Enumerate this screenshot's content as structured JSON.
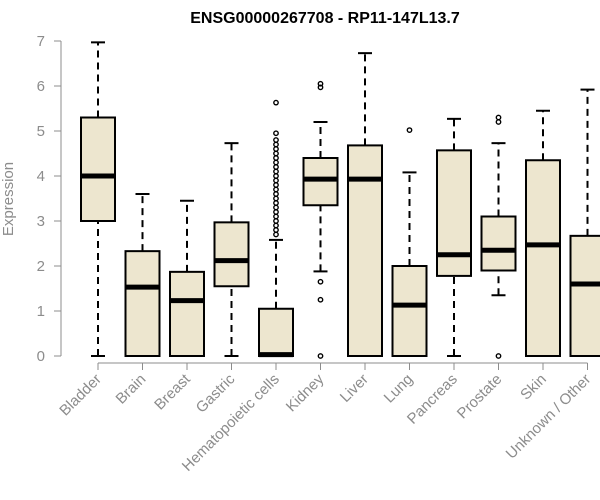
{
  "chart_data": {
    "type": "boxplot",
    "title": "ENSG00000267708 - RP11-147L13.7",
    "ylabel": "Expression",
    "xlabel": "",
    "ylim": [
      0,
      7
    ],
    "yticks": [
      0,
      1,
      2,
      3,
      4,
      5,
      6,
      7
    ],
    "grid": false,
    "colors": {
      "box_fill": "#ede6cf",
      "stroke": "#000000",
      "axis": "#8c8c8c"
    },
    "categories": [
      "Bladder",
      "Brain",
      "Breast",
      "Gastric",
      "Hematopoietic cells",
      "Kidney",
      "Liver",
      "Lung",
      "Pancreas",
      "Prostate",
      "Skin",
      "Unknown / Other"
    ],
    "boxes": [
      {
        "min": 0,
        "q1": 3.0,
        "median": 4.0,
        "q3": 5.3,
        "max": 6.97,
        "outliers": []
      },
      {
        "min": 0,
        "q1": 0,
        "median": 1.53,
        "q3": 2.33,
        "max": 3.6,
        "outliers": []
      },
      {
        "min": 0,
        "q1": 0,
        "median": 1.23,
        "q3": 1.87,
        "max": 3.45,
        "outliers": []
      },
      {
        "min": 0,
        "q1": 1.55,
        "median": 2.12,
        "q3": 2.97,
        "max": 4.73,
        "outliers": []
      },
      {
        "min": 0,
        "q1": 0,
        "median": 0.03,
        "q3": 1.05,
        "max": 2.58,
        "outliers": [
          2.7,
          2.8,
          2.9,
          3.0,
          3.1,
          3.2,
          3.3,
          3.4,
          3.5,
          3.6,
          3.7,
          3.8,
          3.9,
          4.0,
          4.1,
          4.2,
          4.3,
          4.4,
          4.5,
          4.6,
          4.7,
          4.8,
          4.95,
          5.63
        ]
      },
      {
        "min": 1.88,
        "q1": 3.35,
        "median": 3.93,
        "q3": 4.4,
        "max": 5.2,
        "outliers": [
          0,
          1.25,
          1.65,
          5.97,
          6.05
        ]
      },
      {
        "min": 0,
        "q1": 0,
        "median": 3.93,
        "q3": 4.68,
        "max": 6.73,
        "outliers": []
      },
      {
        "min": 0,
        "q1": 0,
        "median": 1.13,
        "q3": 2.0,
        "max": 4.08,
        "outliers": [
          5.02
        ]
      },
      {
        "min": 0,
        "q1": 1.78,
        "median": 2.25,
        "q3": 4.57,
        "max": 5.27,
        "outliers": []
      },
      {
        "min": 1.35,
        "q1": 1.9,
        "median": 2.35,
        "q3": 3.1,
        "max": 4.73,
        "outliers": [
          0,
          5.2,
          5.3
        ]
      },
      {
        "min": 0,
        "q1": 0,
        "median": 2.47,
        "q3": 4.35,
        "max": 5.45,
        "outliers": []
      },
      {
        "min": 0,
        "q1": 0,
        "median": 1.6,
        "q3": 2.67,
        "max": 5.92,
        "outliers": []
      }
    ]
  }
}
